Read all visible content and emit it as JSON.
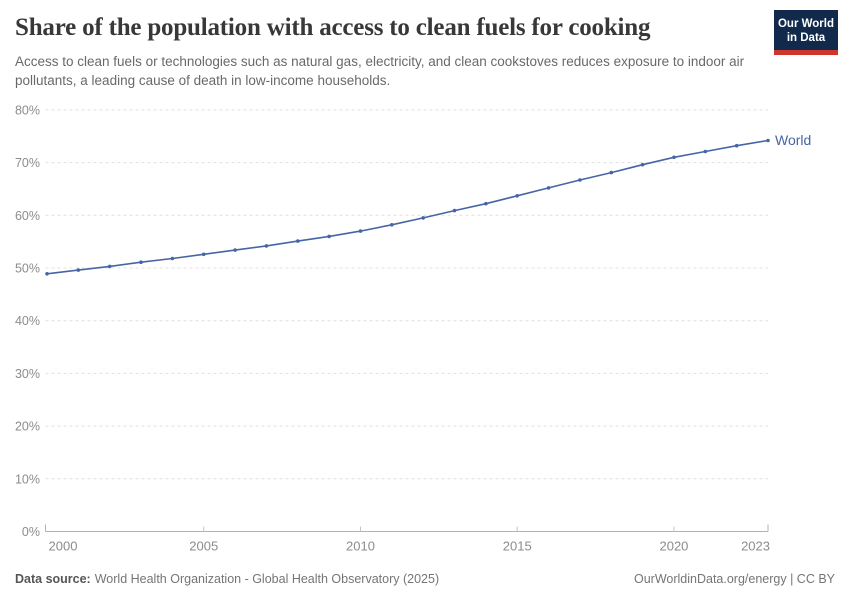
{
  "header": {
    "title": "Share of the population with access to clean fuels for cooking",
    "subtitle": "Access to clean fuels or technologies such as natural gas, electricity, and clean cookstoves reduces exposure to indoor air pollutants, a leading cause of death in low-income households.",
    "logo": {
      "line1": "Our World",
      "line2": "in Data"
    }
  },
  "chart_data": {
    "type": "line",
    "title": "Share of the population with access to clean fuels for cooking",
    "x": [
      2000,
      2001,
      2002,
      2003,
      2004,
      2005,
      2006,
      2007,
      2008,
      2009,
      2010,
      2011,
      2012,
      2013,
      2014,
      2015,
      2016,
      2017,
      2018,
      2019,
      2020,
      2021,
      2022,
      2023
    ],
    "series": [
      {
        "name": "World",
        "color": "#4665a5",
        "values": [
          48.9,
          49.6,
          50.3,
          51.1,
          51.8,
          52.6,
          53.4,
          54.2,
          55.1,
          56.0,
          57.0,
          58.2,
          59.5,
          60.9,
          62.2,
          63.7,
          65.2,
          66.7,
          68.1,
          69.6,
          71.0,
          72.1,
          73.2,
          74.2
        ]
      }
    ],
    "xlabel": "",
    "ylabel": "",
    "ylim": [
      0,
      80
    ],
    "yticks": [
      0,
      10,
      20,
      30,
      40,
      50,
      60,
      70,
      80
    ],
    "ytick_suffix": "%",
    "xticks": [
      2000,
      2005,
      2010,
      2015,
      2020,
      2023
    ],
    "grid": "horizontal-dashed",
    "legend_position": "end-of-line-label",
    "marker": "dot"
  },
  "footer": {
    "source_label": "Data source:",
    "source_text": "World Health Organization - Global Health Observatory (2025)",
    "credit": "OurWorldinData.org/energy | CC BY"
  },
  "colors": {
    "series_blue": "#4665a5",
    "logo_navy": "#11294b",
    "logo_red": "#ce352c",
    "grid_line": "#e0e0e0",
    "axis_line": "#b3b3b3",
    "tick_mark": "#c4c4c4",
    "tick_label": "#8c8c8c",
    "title_text": "#383838",
    "subtitle_text": "#696969",
    "footer_text": "#757575"
  }
}
